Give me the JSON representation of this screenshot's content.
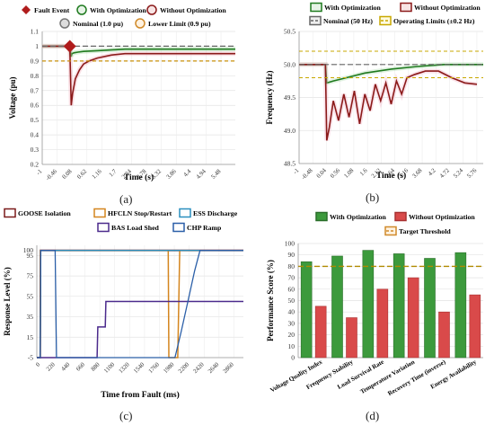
{
  "chart_data": [
    {
      "panel": "(a)",
      "type": "line",
      "xlabel": "Time (s)",
      "ylabel": "Voltage (pu)",
      "xlim": [
        -1,
        6
      ],
      "ylim": [
        0.2,
        1.1
      ],
      "xticks": [
        "-1",
        "-0.46",
        "0.08",
        "0.62",
        "1.16",
        "1.7",
        "2.24",
        "2.78",
        "3.32",
        "3.86",
        "4.4",
        "4.94",
        "5.48"
      ],
      "yticks": [
        "0.2",
        "0.3",
        "0.4",
        "0.5",
        "0.6",
        "0.7",
        "0.8",
        "0.9",
        "1",
        "1.1"
      ],
      "legend": [
        "Fault Event",
        "With Optimization",
        "Without Optimization",
        "Nominal (1.0 pu)",
        "Lower Limit (0.9 pu)"
      ],
      "series": [
        {
          "name": "With Optimization",
          "color": "#1f7a1f",
          "x": [
            -1,
            0,
            0.05,
            0.08,
            0.15,
            0.3,
            0.5,
            1.0,
            1.5,
            2.0,
            3.0,
            6.0
          ],
          "y": [
            1.0,
            1.0,
            0.93,
            0.95,
            0.955,
            0.96,
            0.965,
            0.97,
            0.975,
            0.98,
            0.98,
            0.98
          ]
        },
        {
          "name": "Without Optimization",
          "color": "#8b1a1a",
          "x": [
            -1,
            0,
            0.05,
            0.1,
            0.2,
            0.35,
            0.5,
            0.7,
            1.0,
            1.5,
            2.0,
            3.0,
            6.0
          ],
          "y": [
            1.0,
            1.0,
            0.6,
            0.68,
            0.78,
            0.84,
            0.88,
            0.9,
            0.92,
            0.94,
            0.95,
            0.95,
            0.95
          ]
        },
        {
          "name": "Nominal (1.0 pu)",
          "color": "#666666",
          "x": [
            -1,
            6
          ],
          "y": [
            1.0,
            1.0
          ]
        },
        {
          "name": "Lower Limit (0.9 pu)",
          "color": "#c8900a",
          "x": [
            -1,
            6
          ],
          "y": [
            0.9,
            0.9
          ]
        }
      ],
      "markers": [
        {
          "name": "Fault Event",
          "x": 0.0,
          "y": 1.0,
          "color": "#b01c1c"
        }
      ]
    },
    {
      "panel": "(b)",
      "type": "line",
      "xlabel": "Time (s)",
      "ylabel": "Frequency (Hz)",
      "xlim": [
        -1,
        6
      ],
      "ylim": [
        48.5,
        50.5
      ],
      "xticks": [
        "-1",
        "-0.48",
        "0.04",
        "0.56",
        "1.08",
        "1.6",
        "2.12",
        "2.64",
        "3.16",
        "3.68",
        "4.2",
        "4.72",
        "5.24",
        "5.76"
      ],
      "yticks": [
        "48.5",
        "49.0",
        "49.5",
        "50.0",
        "50.5"
      ],
      "legend": [
        "With Optimization",
        "Without Optimization",
        "Nominal (50 Hz)",
        "Operating Limits (±0.2 Hz)"
      ],
      "series": [
        {
          "name": "With Optimization",
          "color": "#1f7a1f",
          "x": [
            -1,
            0,
            0.05,
            0.3,
            0.8,
            1.5,
            2.5,
            3.5,
            4.5,
            6.0
          ],
          "y": [
            50.0,
            50.0,
            49.72,
            49.75,
            49.8,
            49.87,
            49.93,
            49.97,
            50.0,
            50.0
          ]
        },
        {
          "name": "Without Optimization",
          "color": "#8b1a1a",
          "x": [
            -1,
            0,
            0.05,
            0.15,
            0.3,
            0.5,
            0.7,
            0.9,
            1.1,
            1.3,
            1.5,
            1.7,
            1.9,
            2.1,
            2.3,
            2.5,
            2.7,
            2.9,
            3.1,
            3.4,
            3.8,
            4.3,
            4.8,
            5.3,
            5.76
          ],
          "y": [
            50.0,
            50.0,
            48.85,
            49.05,
            49.45,
            49.15,
            49.55,
            49.2,
            49.6,
            49.1,
            49.55,
            49.3,
            49.7,
            49.45,
            49.72,
            49.4,
            49.75,
            49.55,
            49.8,
            49.85,
            49.9,
            49.9,
            49.8,
            49.72,
            49.7
          ]
        },
        {
          "name": "Nominal (50 Hz)",
          "color": "#666666",
          "x": [
            -1,
            6
          ],
          "y": [
            50.0,
            50.0
          ]
        },
        {
          "name": "Operating Limits (±0.2 Hz)",
          "color": "#c8a800",
          "x": [
            -1,
            6
          ],
          "y": [
            50.2,
            50.2
          ]
        },
        {
          "name": "Operating Limits (±0.2 Hz)",
          "color": "#c8a800",
          "x": [
            -1,
            6
          ],
          "y": [
            49.8,
            49.8
          ]
        }
      ]
    },
    {
      "panel": "(c)",
      "type": "line",
      "xlabel": "Time from Fault (ms)",
      "ylabel": "Response Level (%)",
      "xlim": [
        -50,
        3000
      ],
      "ylim": [
        -5,
        105
      ],
      "xticks": [
        "0",
        "220",
        "440",
        "660",
        "880",
        "1100",
        "1320",
        "1540",
        "1760",
        "1980",
        "2200",
        "2420",
        "2640",
        "2860"
      ],
      "yticks": [
        "-5",
        "15",
        "35",
        "55",
        "75",
        "95"
      ],
      "ytick_extra": [
        "100"
      ],
      "legend": [
        "GOOSE Isolation",
        "HFCLN Stop/Restart",
        "ESS Discharge",
        "BAS Load Shed",
        "CHP Ramp"
      ],
      "series": [
        {
          "name": "GOOSE Isolation",
          "color": "#7a1a1a",
          "x": [
            -50,
            0,
            4,
            3000
          ],
          "y": [
            -5,
            -5,
            100,
            100
          ]
        },
        {
          "name": "HFCLN Stop/Restart",
          "color": "#d4851e",
          "x": [
            -50,
            0,
            4,
            1890,
            1900,
            2030,
            2060,
            3000
          ],
          "y": [
            -5,
            -5,
            100,
            100,
            -5,
            -5,
            100,
            100
          ]
        },
        {
          "name": "ESS Discharge",
          "color": "#2a8fbf",
          "x": [
            -50,
            0,
            8,
            3000
          ],
          "y": [
            -5,
            -5,
            100,
            100
          ]
        },
        {
          "name": "BAS Load Shed",
          "color": "#4b2a8c",
          "x": [
            -50,
            840,
            850,
            960,
            970,
            3000
          ],
          "y": [
            -5,
            -5,
            25,
            25,
            50,
            50
          ]
        },
        {
          "name": "CHP Ramp",
          "color": "#2b5fa8",
          "x": [
            -50,
            0,
            8,
            220,
            240,
            1990,
            2080,
            2180,
            2280,
            2360,
            3000
          ],
          "y": [
            -5,
            -5,
            100,
            100,
            -5,
            -5,
            20,
            50,
            80,
            100,
            100
          ]
        }
      ]
    },
    {
      "panel": "(d)",
      "type": "bar",
      "xlabel": "",
      "ylabel": "Performance Score (%)",
      "ylim": [
        0,
        100
      ],
      "yticks": [
        "0",
        "10",
        "20",
        "30",
        "40",
        "50",
        "60",
        "70",
        "80",
        "90",
        "100"
      ],
      "categories": [
        "Voltage Quality Index",
        "Frequency Stability",
        "Load Survival Rate",
        "Temperature Variation",
        "Recovery Time (inverse)",
        "Energy Availability"
      ],
      "legend": [
        "With Optimization",
        "Without Optimization",
        "Target Threshold"
      ],
      "series": [
        {
          "name": "With Optimization",
          "color": "#3c9a3c",
          "values": [
            84,
            89,
            94,
            91,
            87,
            92
          ]
        },
        {
          "name": "Without Optimization",
          "color": "#d94a4a",
          "values": [
            45,
            35,
            60,
            70,
            40,
            55
          ]
        }
      ],
      "threshold": {
        "name": "Target Threshold",
        "value": 80,
        "color": "#b08a00"
      }
    }
  ],
  "panel_labels": [
    "(a)",
    "(b)",
    "(c)",
    "(d)"
  ]
}
